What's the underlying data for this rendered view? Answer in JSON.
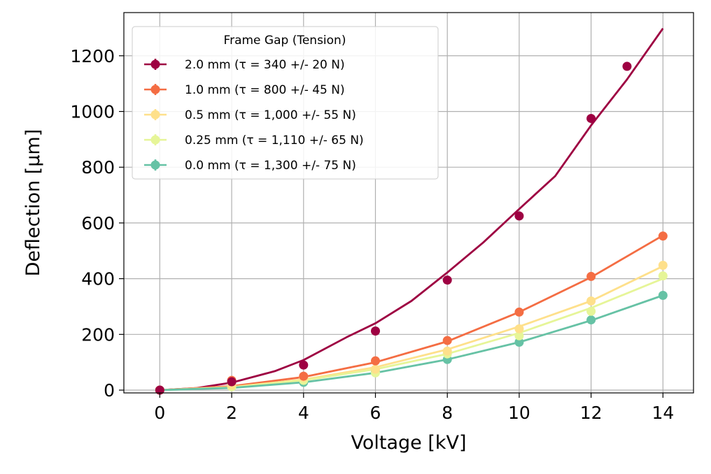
{
  "chart_data": {
    "type": "scatter",
    "xlabel": "Voltage [kV]",
    "ylabel": "Deflection [μm]",
    "xlim": [
      -1,
      14.85
    ],
    "ylim": [
      -10,
      1355
    ],
    "xticks": [
      0,
      2,
      4,
      6,
      8,
      10,
      12,
      14
    ],
    "yticks": [
      0,
      200,
      400,
      600,
      800,
      1000,
      1200
    ],
    "grid": true,
    "legend": {
      "placement": "top-left",
      "title": "Frame Gap (Tension)"
    },
    "series": [
      {
        "name": "2.0 mm (τ = 340 +/- 20 N)",
        "color": "#9e0142",
        "points": {
          "x": [
            0,
            2,
            4,
            6,
            8,
            10,
            12,
            13
          ],
          "y": [
            0,
            30,
            90,
            212,
            395,
            625,
            975,
            1162
          ]
        },
        "fit": {
          "x": [
            0,
            1,
            2,
            3.2,
            4,
            5.2,
            6,
            7,
            8,
            9,
            10,
            11,
            12,
            13,
            14
          ],
          "y": [
            0,
            7,
            27,
            68,
            108,
            190,
            240,
            320,
            422,
            530,
            650,
            768,
            950,
            1115,
            1298
          ]
        }
      },
      {
        "name": "1.0 mm (τ = 800 +/- 45 N)",
        "color": "#f46d43",
        "points": {
          "x": [
            0,
            2,
            4,
            6,
            8,
            10,
            12,
            14
          ],
          "y": [
            0,
            35,
            50,
            105,
            178,
            280,
            408,
            553
          ]
        },
        "fit": {
          "x": [
            0,
            2,
            4,
            6,
            8,
            10,
            12,
            14
          ],
          "y": [
            0,
            14,
            47,
            100,
            175,
            280,
            405,
            555
          ]
        }
      },
      {
        "name": "0.5 mm (τ = 1,000 +/- 55 N)",
        "color": "#fee08b",
        "points": {
          "x": [
            0,
            2,
            4,
            6,
            8,
            10,
            12,
            14
          ],
          "y": [
            0,
            18,
            45,
            75,
            140,
            220,
            320,
            448
          ]
        },
        "fit": {
          "x": [
            0,
            2,
            4,
            6,
            8,
            10,
            12,
            14
          ],
          "y": [
            0,
            11,
            38,
            82,
            146,
            228,
            320,
            445
          ]
        }
      },
      {
        "name": "0.25 mm (τ = 1,110 +/- 65 N)",
        "color": "#e6f598",
        "points": {
          "x": [
            0,
            2,
            4,
            6,
            8,
            10,
            12,
            14
          ],
          "y": [
            0,
            12,
            35,
            62,
            130,
            195,
            283,
            410
          ]
        },
        "fit": {
          "x": [
            0,
            2,
            4,
            6,
            8,
            10,
            12,
            14
          ],
          "y": [
            0,
            10,
            35,
            75,
            130,
            205,
            295,
            400
          ]
        }
      },
      {
        "name": "0.0 mm (τ = 1,300 +/- 75 N)",
        "color": "#66c2a5",
        "points": {
          "x": [
            0,
            2,
            4,
            6,
            8,
            10,
            12,
            14
          ],
          "y": [
            0,
            25,
            28,
            65,
            110,
            172,
            252,
            340
          ]
        },
        "fit": {
          "x": [
            0,
            2,
            4,
            6,
            8,
            10,
            12,
            14
          ],
          "y": [
            0,
            8,
            28,
            62,
            110,
            172,
            250,
            340
          ]
        }
      }
    ]
  }
}
